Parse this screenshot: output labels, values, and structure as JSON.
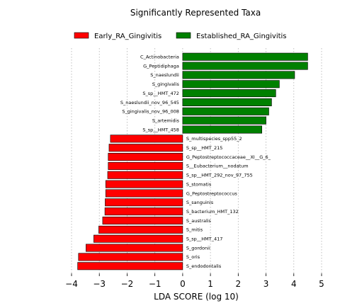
{
  "chart_data": {
    "type": "bar",
    "orientation": "horizontal",
    "title": "Significantly Represented Taxa",
    "xlabel": "LDA SCORE (log 10)",
    "xlim": [
      -4,
      5
    ],
    "xticks": [
      -4,
      -3,
      -2,
      -1,
      0,
      1,
      2,
      3,
      4,
      5
    ],
    "xtick_labels": [
      "−4",
      "−3",
      "−2",
      "−1",
      "0",
      "1",
      "2",
      "3",
      "4",
      "5"
    ],
    "grid": "vertical-dotted",
    "legend_position": "top",
    "legend": [
      {
        "name": "Early_RA_Gingivitis",
        "color": "#ff0000"
      },
      {
        "name": "Established_RA_Gingivitis",
        "color": "#008000"
      }
    ],
    "bars": [
      {
        "label": "C_Actinobacteria",
        "value": 4.5,
        "group": 1
      },
      {
        "label": "G_Peptidiphaga",
        "value": 4.5,
        "group": 1
      },
      {
        "label": "S_naeslundii",
        "value": 4.03,
        "group": 1
      },
      {
        "label": "S_gingivalis",
        "value": 3.48,
        "group": 1
      },
      {
        "label": "S_sp__HMT_472",
        "value": 3.35,
        "group": 1
      },
      {
        "label": "S_naeslundii_nov_96_545",
        "value": 3.2,
        "group": 1
      },
      {
        "label": "S_gingivalis_nov_96_008",
        "value": 3.1,
        "group": 1
      },
      {
        "label": "S_artemidis",
        "value": 3.0,
        "group": 1
      },
      {
        "label": "S_sp__HMT_458",
        "value": 2.85,
        "group": 1
      },
      {
        "label": "S_multispecies_spp55_2",
        "value": -2.6,
        "group": 0
      },
      {
        "label": "S_sp__HMT_215",
        "value": -2.65,
        "group": 0
      },
      {
        "label": "G_Peptostreptococcaceae__XI__G_6_",
        "value": -2.68,
        "group": 0
      },
      {
        "label": "S__Eubacterium__nodatum",
        "value": -2.68,
        "group": 0
      },
      {
        "label": "S_sp__HMT_292_nov_97_755",
        "value": -2.7,
        "group": 0
      },
      {
        "label": "S_stomatis",
        "value": -2.77,
        "group": 0
      },
      {
        "label": "G_Peptostreptococcus",
        "value": -2.77,
        "group": 0
      },
      {
        "label": "S_sanguinis",
        "value": -2.79,
        "group": 0
      },
      {
        "label": "S_bacterium_HMT_132",
        "value": -2.8,
        "group": 0
      },
      {
        "label": "S_australis",
        "value": -2.88,
        "group": 0
      },
      {
        "label": "S_mitis",
        "value": -3.02,
        "group": 0
      },
      {
        "label": "S_sp__HMT_417",
        "value": -3.2,
        "group": 0
      },
      {
        "label": "S_gordonii",
        "value": -3.48,
        "group": 0
      },
      {
        "label": "S_oris",
        "value": -3.75,
        "group": 0
      },
      {
        "label": "S_endodontalis",
        "value": -3.78,
        "group": 0
      }
    ]
  }
}
